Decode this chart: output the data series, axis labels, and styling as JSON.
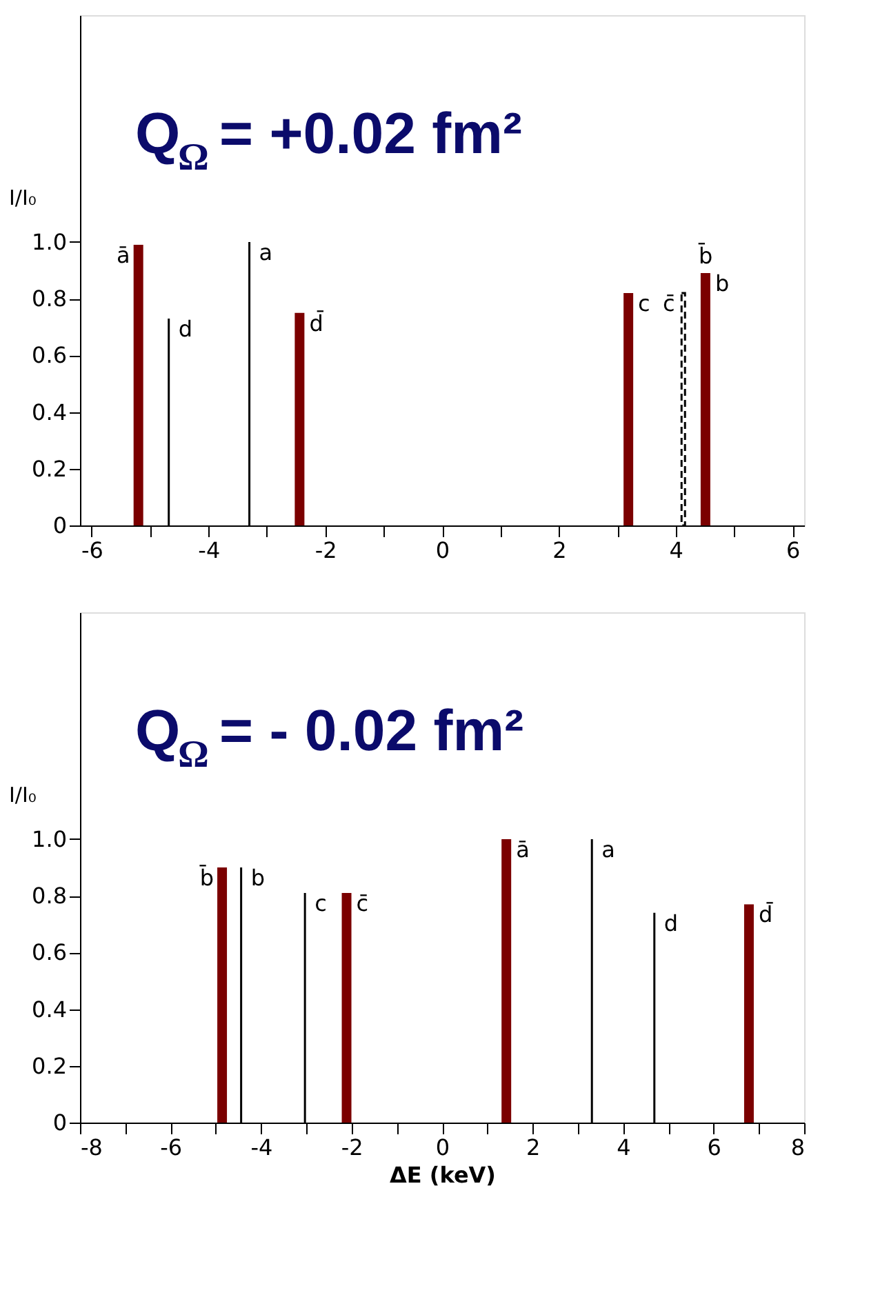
{
  "chart_data": [
    {
      "type": "bar",
      "title": "Q$_{Ω}$ = +0.02 fm²",
      "ylabel": "I/I₀",
      "xlim": [
        -6.2,
        6.2
      ],
      "ylim": [
        0,
        1.8
      ],
      "xticks": [
        -6,
        {
          "value": -5,
          "label": null
        },
        -4,
        {
          "value": -3,
          "label": null
        },
        -2,
        {
          "value": -1,
          "label": null
        },
        0,
        {
          "value": 1,
          "label": null
        },
        2,
        {
          "value": 3,
          "label": null
        },
        4,
        {
          "value": 5,
          "label": null
        },
        6
      ],
      "yticks": [
        0,
        0.2,
        0.4,
        0.6,
        0.8,
        {
          "value": 1,
          "label": "1.0"
        }
      ],
      "series": [
        {
          "color": "#7b0000",
          "x": [
            -5.2,
            -2.44,
            3.19,
            4.51
          ],
          "values": [
            0.99,
            0.75,
            0.82,
            0.89
          ]
        },
        {
          "color": "#000000",
          "x": [
            -4.68,
            -3.3
          ],
          "values": [
            0.73,
            1.0
          ]
        },
        {
          "color": "#000000",
          "line_style": "dashed",
          "x": [
            4.13
          ],
          "values": [
            0.82
          ]
        }
      ],
      "annotations": [
        {
          "text": "ā",
          "x": -5.2,
          "y": 0.99
        },
        {
          "text": "d",
          "x": -4.68,
          "y": 0.73
        },
        {
          "text": "a",
          "x": -3.3,
          "y": 1.0
        },
        {
          "text": "d̄",
          "x": -2.44,
          "y": 0.75
        },
        {
          "text": "c",
          "x": 3.19,
          "y": 0.82
        },
        {
          "text": "c̄",
          "x": 4.13,
          "y": 0.82
        },
        {
          "text": "b",
          "x": 4.51,
          "y": 0.89
        },
        {
          "text": "b̄",
          "x": 4.51,
          "y": 0.89
        }
      ],
      "grid": false,
      "legend": false
    },
    {
      "type": "bar",
      "title": "Q$_{Ω}$ = - 0.02 fm²",
      "ylabel": "I/I₀",
      "xlabel": "ΔE (keV)",
      "xlim": [
        -8,
        8
      ],
      "ylim": [
        0,
        1.8
      ],
      "xticks": [
        -8,
        {
          "value": -7,
          "label": null
        },
        -6,
        {
          "value": -5,
          "label": null
        },
        -4,
        {
          "value": -3,
          "label": null
        },
        -2,
        {
          "value": -1,
          "label": null
        },
        0,
        {
          "value": 1,
          "label": null
        },
        2,
        {
          "value": 3,
          "label": null
        },
        4,
        {
          "value": 5,
          "label": null
        },
        6,
        {
          "value": 7,
          "label": null
        },
        8
      ],
      "yticks": [
        0,
        0.2,
        0.4,
        0.6,
        0.8,
        {
          "value": 1,
          "label": "1.0"
        }
      ],
      "series": [
        {
          "color": "#7b0000",
          "x": [
            -4.86,
            -2.11,
            1.42,
            6.78
          ],
          "values": [
            0.9,
            0.81,
            1.0,
            0.77
          ]
        },
        {
          "color": "#000000",
          "x": [
            -4.44,
            -3.03,
            3.31,
            4.69
          ],
          "values": [
            0.9,
            0.81,
            1.0,
            0.74
          ]
        }
      ],
      "annotations": [
        {
          "text": "b̄",
          "x": -4.86,
          "y": 0.9
        },
        {
          "text": "b",
          "x": -4.44,
          "y": 0.9
        },
        {
          "text": "c",
          "x": -3.03,
          "y": 0.81
        },
        {
          "text": "c̄",
          "x": -2.11,
          "y": 0.81
        },
        {
          "text": "ā",
          "x": 1.42,
          "y": 1.0
        },
        {
          "text": "a",
          "x": 3.31,
          "y": 1.0
        },
        {
          "text": "d",
          "x": 4.69,
          "y": 0.74
        },
        {
          "text": "d̄",
          "x": 6.78,
          "y": 0.77
        }
      ],
      "grid": false,
      "legend": false
    }
  ]
}
